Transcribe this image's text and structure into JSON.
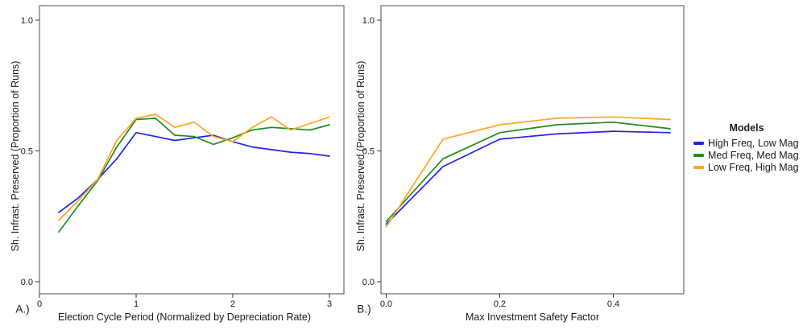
{
  "legend": {
    "title": "Models",
    "position": "right",
    "items": [
      {
        "label": "High Freq, Low Mag",
        "color": "#2222EE"
      },
      {
        "label": "Med Freq, Med Mag",
        "color": "#228B22"
      },
      {
        "label": "Low Freq, High Mag",
        "color": "#FFA51E"
      }
    ]
  },
  "chart_data": [
    {
      "type": "line",
      "panel_tag": "A.)",
      "title": "",
      "xlabel": "Election Cycle Period (Normalized by Depreciation Rate)",
      "ylabel": "Sh. Infrast. Preserved (Proportion of Runs)",
      "xlim": [
        0,
        3.15
      ],
      "ylim": [
        -0.05,
        1.06
      ],
      "grid": false,
      "xticks": [
        0,
        1,
        2,
        3
      ],
      "xtick_labels": [
        "0",
        "1",
        "2",
        "3"
      ],
      "yticks": [
        0.0,
        0.5,
        1.0
      ],
      "ytick_labels": [
        "0.0",
        "0.5",
        "1.0"
      ],
      "x": [
        0.2,
        0.4,
        0.6,
        0.8,
        1.0,
        1.2,
        1.4,
        1.6,
        1.8,
        2.0,
        2.2,
        2.4,
        2.6,
        2.8,
        3.0
      ],
      "series": [
        {
          "name": "High Freq, Low Mag",
          "color": "#2222EE",
          "values": [
            0.265,
            0.32,
            0.39,
            0.47,
            0.57,
            0.555,
            0.54,
            0.55,
            0.56,
            0.535,
            0.515,
            0.505,
            0.495,
            0.49,
            0.48
          ]
        },
        {
          "name": "Med Freq, Med Mag",
          "color": "#228B22",
          "values": [
            0.19,
            0.29,
            0.385,
            0.515,
            0.62,
            0.625,
            0.56,
            0.555,
            0.525,
            0.55,
            0.58,
            0.59,
            0.585,
            0.58,
            0.6
          ]
        },
        {
          "name": "Low Freq, High Mag",
          "color": "#FFA51E",
          "values": [
            0.235,
            0.31,
            0.39,
            0.54,
            0.625,
            0.64,
            0.59,
            0.61,
            0.555,
            0.535,
            0.59,
            0.63,
            0.58,
            0.605,
            0.63
          ]
        }
      ]
    },
    {
      "type": "line",
      "panel_tag": "B.)",
      "title": "",
      "xlabel": "Max Investment Safety Factor",
      "ylabel": "Sh. Infrast. Preserved (Proportion of Runs)",
      "xlim": [
        -0.01,
        0.52
      ],
      "ylim": [
        -0.05,
        1.06
      ],
      "grid": false,
      "xticks": [
        0.0,
        0.2,
        0.4
      ],
      "xtick_labels": [
        "0.0",
        "0.2",
        "0.4"
      ],
      "yticks": [
        0.0,
        0.5,
        1.0
      ],
      "ytick_labels": [
        "0.0",
        "0.5",
        "1.0"
      ],
      "x": [
        0.0,
        0.1,
        0.2,
        0.3,
        0.4,
        0.5
      ],
      "series": [
        {
          "name": "High Freq, Low Mag",
          "color": "#2222EE",
          "values": [
            0.22,
            0.44,
            0.545,
            0.565,
            0.575,
            0.57
          ]
        },
        {
          "name": "Med Freq, Med Mag",
          "color": "#228B22",
          "values": [
            0.23,
            0.47,
            0.57,
            0.6,
            0.61,
            0.585
          ]
        },
        {
          "name": "Low Freq, High Mag",
          "color": "#FFA51E",
          "values": [
            0.21,
            0.545,
            0.6,
            0.625,
            0.63,
            0.62
          ]
        }
      ]
    }
  ]
}
